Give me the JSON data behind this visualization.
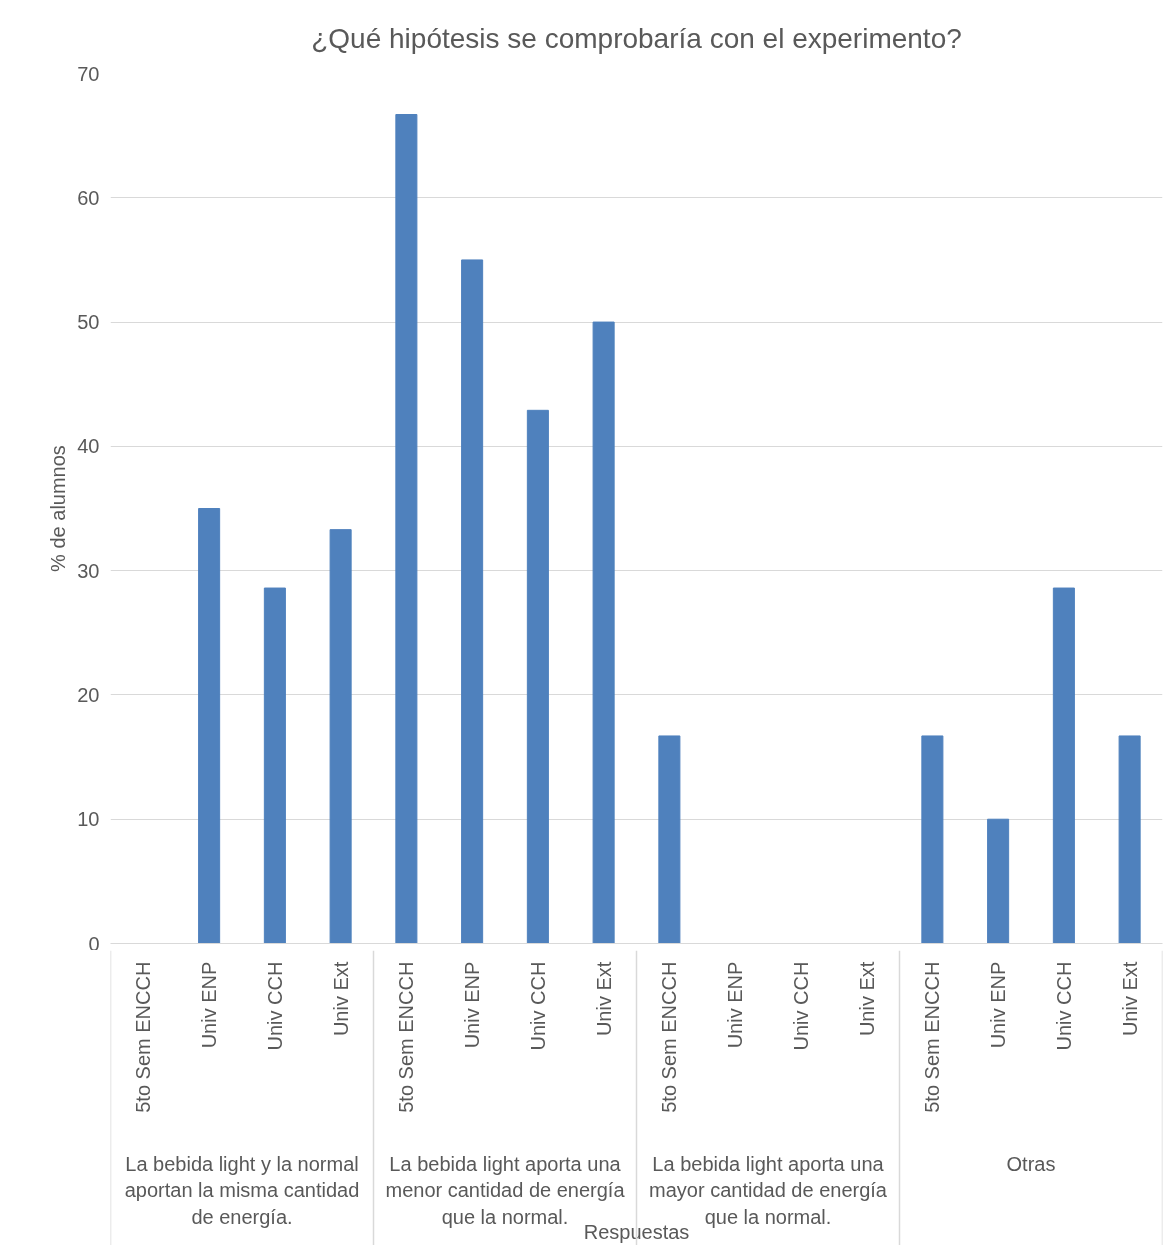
{
  "chart_data": {
    "type": "bar",
    "title": "¿Qué hipótesis se comprobaría con el experimento?",
    "ylabel": "% de alumnos",
    "categories": [
      "5to Sem ENCCH",
      "Univ ENP",
      "Univ CCH",
      "Univ Ext",
      "5to Sem ENCCH",
      "Univ ENP",
      "Univ CCH",
      "Univ Ext",
      "5to Sem ENCCH",
      "Univ ENP",
      "Univ CCH",
      "Univ Ext",
      "5to Sem ENCCH",
      "Univ ENP",
      "Univ CCH",
      "Univ Ext"
    ],
    "values": [
      0,
      35,
      28.6,
      33.3,
      66.7,
      55,
      42.9,
      50,
      16.7,
      0,
      0,
      0,
      16.7,
      10,
      28.6,
      16.7
    ],
    "color": "#4f81bd",
    "ylim": [
      0,
      70
    ],
    "yticks": [
      0,
      10,
      20,
      30,
      40,
      50,
      60,
      70
    ],
    "grid": "y",
    "annotations": [
      "La bebida light y la normal aportan la misma cantidad de energía.",
      "La bebida light aporta una menor cantidad de energía que la normal.",
      "La bebida light aporta una mayor cantidad de energía que la normal.",
      "Otras",
      "Respuestas"
    ]
  }
}
